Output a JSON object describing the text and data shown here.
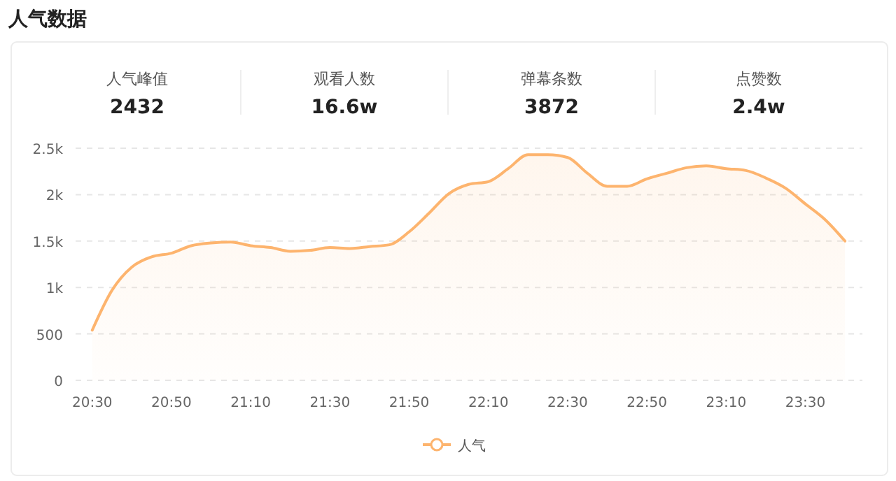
{
  "chart_data": [
    {
      "type": "other",
      "title": "人气数据",
      "categories": [
        "人气峰值",
        "观看人数",
        "弹幕条数",
        "点赞数"
      ],
      "value_labels": [
        "2432",
        "16.6w",
        "3872",
        "2.4w"
      ]
    },
    {
      "type": "area",
      "x": [
        20.5,
        20.5833,
        20.6667,
        20.75,
        20.8333,
        20.9167,
        21,
        21.0833,
        21.1667,
        21.25,
        21.3333,
        21.4167,
        21.5,
        21.5833,
        21.6667,
        21.75,
        21.8333,
        21.9167,
        22,
        22.0833,
        22.1667,
        22.25,
        22.3333,
        22.4167,
        22.5,
        22.5833,
        22.6667,
        22.75,
        22.8333,
        22.9167,
        23,
        23.0833,
        23.1667,
        23.25,
        23.3333,
        23.4167,
        23.5,
        23.5833,
        23.6667
      ],
      "series": [
        {
          "name": "人气",
          "color": "#fdb46e",
          "values": [
            540,
            970,
            1220,
            1330,
            1370,
            1450,
            1480,
            1490,
            1450,
            1430,
            1390,
            1400,
            1430,
            1420,
            1440,
            1460,
            1600,
            1800,
            2010,
            2110,
            2140,
            2280,
            2430,
            2430,
            2400,
            2230,
            2090,
            2090,
            2170,
            2230,
            2290,
            2310,
            2280,
            2260,
            2180,
            2070,
            1900,
            1730,
            1500
          ]
        }
      ],
      "xlim": [
        20.43,
        23.74
      ],
      "xticks": [
        {
          "value": 20.5,
          "label": "20:30"
        },
        {
          "value": 20.8333,
          "label": "20:50"
        },
        {
          "value": 21.1667,
          "label": "21:10"
        },
        {
          "value": 21.5,
          "label": "21:30"
        },
        {
          "value": 21.8333,
          "label": "21:50"
        },
        {
          "value": 22.1667,
          "label": "22:10"
        },
        {
          "value": 22.5,
          "label": "22:30"
        },
        {
          "value": 22.8333,
          "label": "22:50"
        },
        {
          "value": 23.1667,
          "label": "23:10"
        },
        {
          "value": 23.5,
          "label": "23:30"
        }
      ],
      "ylim": [
        0,
        2500
      ],
      "yticks": [
        0,
        500,
        {
          "value": 1000,
          "label": "1k"
        },
        {
          "value": 1500,
          "label": "1.5k"
        },
        {
          "value": 2000,
          "label": "2k"
        },
        {
          "value": 2500,
          "label": "2.5k"
        }
      ],
      "grid": "y",
      "legend": "bottom"
    }
  ]
}
